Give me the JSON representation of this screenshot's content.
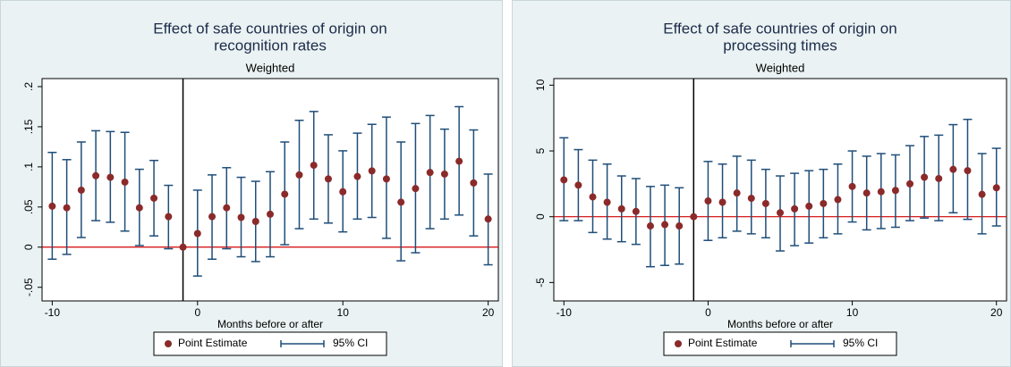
{
  "chart_data": [
    {
      "type": "scatter",
      "title": [
        "Effect of safe countries of origin on",
        "recognition rates"
      ],
      "subtitle": "Weighted",
      "x_label": "Months before or after",
      "x": [
        -10,
        -9,
        -8,
        -7,
        -6,
        -5,
        -4,
        -3,
        -2,
        -1,
        0,
        1,
        2,
        3,
        4,
        5,
        6,
        7,
        8,
        9,
        10,
        11,
        12,
        13,
        14,
        15,
        16,
        17,
        18,
        19,
        20
      ],
      "series": [
        {
          "name": "Point Estimate",
          "color": "#8b2a2a",
          "values": [
            0.051,
            0.049,
            0.071,
            0.089,
            0.087,
            0.081,
            0.049,
            0.061,
            0.038,
            0.0,
            0.017,
            0.038,
            0.049,
            0.037,
            0.032,
            0.041,
            0.066,
            0.09,
            0.102,
            0.085,
            0.069,
            0.088,
            0.095,
            0.085,
            0.056,
            0.073,
            0.093,
            0.091,
            0.107,
            0.08,
            0.035
          ]
        }
      ],
      "ci": {
        "name": "95% CI",
        "color": "#1f4e79",
        "low": [
          -0.015,
          -0.009,
          0.012,
          0.033,
          0.031,
          0.02,
          0.002,
          0.014,
          -0.002,
          null,
          -0.036,
          -0.015,
          -0.002,
          -0.012,
          -0.018,
          -0.012,
          0.003,
          0.023,
          0.035,
          0.03,
          0.019,
          0.035,
          0.037,
          0.011,
          -0.017,
          -0.007,
          0.023,
          0.035,
          0.04,
          0.014,
          -0.022
        ],
        "high": [
          0.118,
          0.109,
          0.131,
          0.145,
          0.144,
          0.143,
          0.097,
          0.108,
          0.077,
          null,
          0.071,
          0.09,
          0.099,
          0.087,
          0.082,
          0.094,
          0.131,
          0.158,
          0.169,
          0.14,
          0.12,
          0.142,
          0.153,
          0.162,
          0.131,
          0.154,
          0.164,
          0.147,
          0.175,
          0.146,
          0.091
        ]
      },
      "xlim": [
        -10.7,
        20.7
      ],
      "xticks": [
        -10,
        0,
        10,
        20
      ],
      "ylim": [
        -0.067,
        0.21
      ],
      "yticks": [
        {
          "value": -0.05,
          "label": "-.05"
        },
        0,
        {
          "value": 0.05,
          "label": ".05"
        },
        {
          "value": 0.1,
          "label": ".1"
        },
        {
          "value": 0.15,
          "label": ".15"
        },
        {
          "value": 0.2,
          "label": ".2"
        }
      ],
      "reference_x": -1,
      "reference_y": 0
    },
    {
      "type": "scatter",
      "title": [
        "Effect of safe countries of origin on",
        "processing times"
      ],
      "subtitle": "Weighted",
      "x_label": "Months before or after",
      "x": [
        -10,
        -9,
        -8,
        -7,
        -6,
        -5,
        -4,
        -3,
        -2,
        -1,
        0,
        1,
        2,
        3,
        4,
        5,
        6,
        7,
        8,
        9,
        10,
        11,
        12,
        13,
        14,
        15,
        16,
        17,
        18,
        19,
        20
      ],
      "series": [
        {
          "name": "Point Estimate",
          "color": "#8b2a2a",
          "values": [
            2.8,
            2.4,
            1.5,
            1.1,
            0.6,
            0.4,
            -0.7,
            -0.6,
            -0.7,
            0,
            1.2,
            1.1,
            1.8,
            1.4,
            1.0,
            0.3,
            0.6,
            0.8,
            1.0,
            1.3,
            2.3,
            1.8,
            1.9,
            2.0,
            2.5,
            3.0,
            2.9,
            3.6,
            3.5,
            1.7,
            2.2
          ]
        }
      ],
      "ci": {
        "name": "95% CI",
        "color": "#1f4e79",
        "low": [
          -0.3,
          -0.3,
          -1.2,
          -1.7,
          -1.9,
          -2.1,
          -3.8,
          -3.7,
          -3.6,
          null,
          -1.8,
          -1.6,
          -1.1,
          -1.3,
          -1.6,
          -2.6,
          -2.2,
          -2.0,
          -1.6,
          -1.3,
          -0.4,
          -1.0,
          -0.9,
          -0.8,
          -0.3,
          -0.1,
          -0.3,
          0.3,
          -0.2,
          -1.3,
          -0.7
        ],
        "high": [
          6.0,
          5.1,
          4.3,
          4.0,
          3.1,
          2.9,
          2.3,
          2.4,
          2.2,
          null,
          4.2,
          4.0,
          4.6,
          4.3,
          3.6,
          3.1,
          3.3,
          3.5,
          3.6,
          4.0,
          5.0,
          4.6,
          4.8,
          4.7,
          5.4,
          6.1,
          6.2,
          7.0,
          7.4,
          4.8,
          5.2
        ]
      },
      "xlim": [
        -10.7,
        20.7
      ],
      "xticks": [
        -10,
        0,
        10,
        20
      ],
      "ylim": [
        -6.4,
        10.5
      ],
      "yticks": [
        -5,
        0,
        5,
        10
      ],
      "reference_x": -1,
      "reference_y": 0
    }
  ]
}
